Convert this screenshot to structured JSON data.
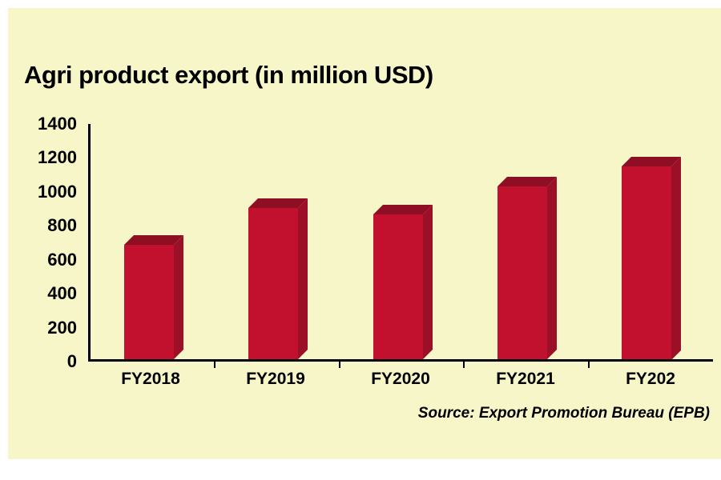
{
  "title": "Agri product export (in million USD)",
  "source": "Source: Export Promotion Bureau (EPB)",
  "colors": {
    "panel_background": "#f7f6c8",
    "bar_face": "#c2112e",
    "bar_top": "#8e0f23",
    "bar_side": "#9c1027",
    "axis": "#000000",
    "text": "#000000"
  },
  "chart_data": {
    "type": "bar",
    "title": "Agri product export (in million USD)",
    "categories": [
      "FY2018",
      "FY2019",
      "FY2020",
      "FY2021",
      "FY202"
    ],
    "values": [
      680,
      900,
      860,
      1030,
      1150
    ],
    "xlabel": "",
    "ylabel": "",
    "ylim": [
      0,
      1400
    ],
    "yticks": [
      0,
      200,
      400,
      600,
      800,
      1000,
      1200,
      1400
    ],
    "grid": false,
    "legend": "none",
    "bar_color": "#c2112e",
    "bar_top_color": "#8e0f23",
    "bar_side_color": "#9c1027",
    "background": "#f7f6c8",
    "source_note": "Source: Export Promotion Bureau (EPB)"
  }
}
